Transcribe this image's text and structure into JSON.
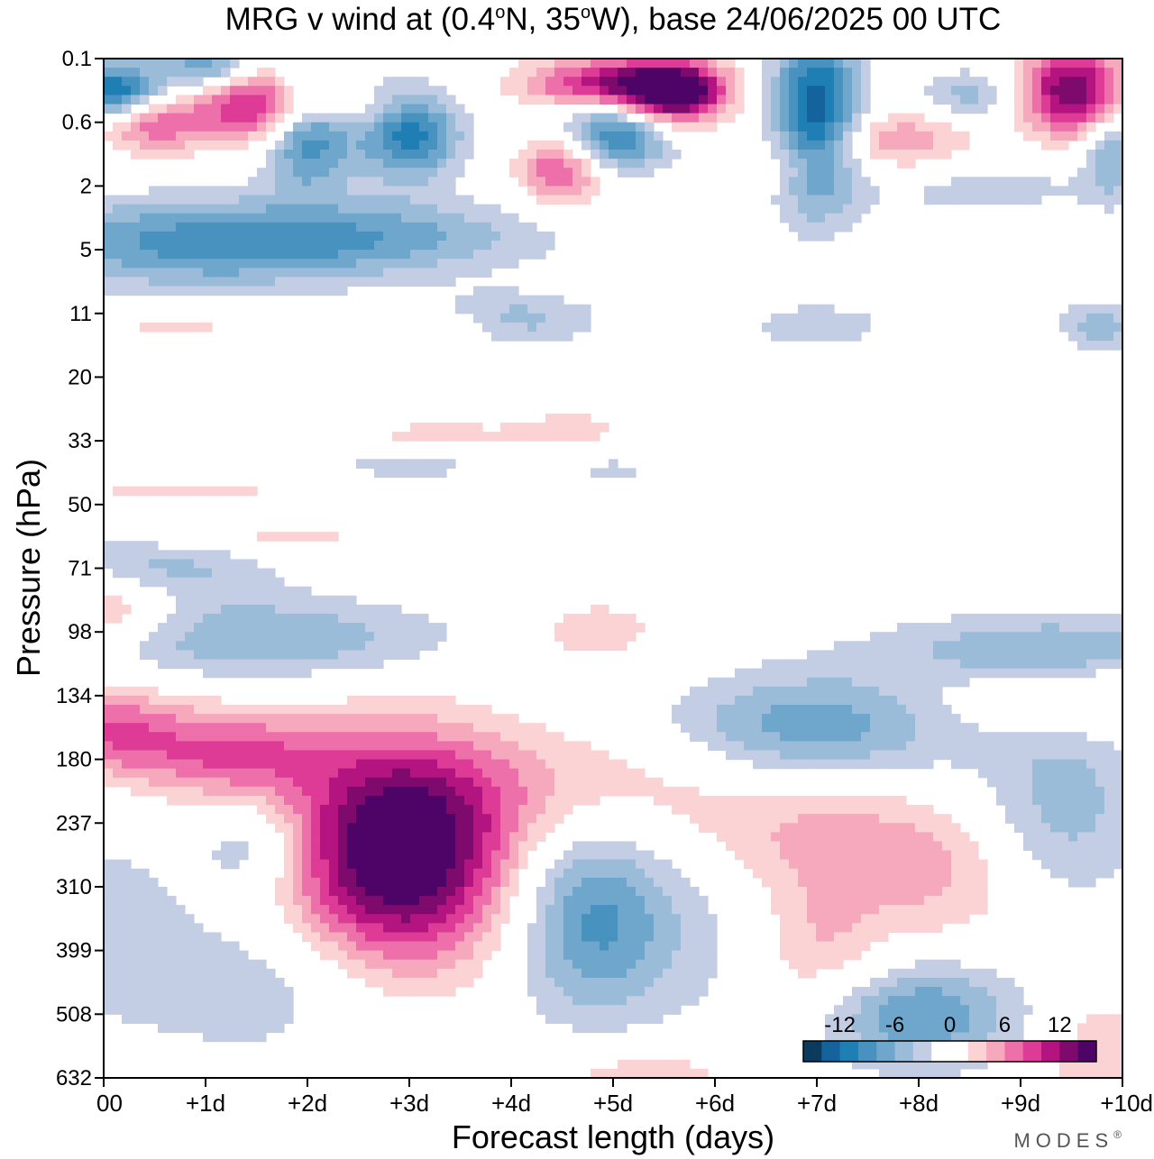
{
  "chart_data": {
    "type": "heatmap",
    "title": "MRG v wind at (0.4°N, 35°W),  base 24/06/2025  00 UTC",
    "title_parts": {
      "pre": "MRG v wind at (0.4",
      "deg1": "o",
      "mid": "N, 35",
      "deg2": "o",
      "post": "W),  base 24/06/2025  00 UTC"
    },
    "xlabel": "Forecast length (days)",
    "ylabel": "Pressure (hPa)",
    "x_ticks": [
      "00",
      "+1d",
      "+2d",
      "+3d",
      "+4d",
      "+5d",
      "+6d",
      "+7d",
      "+8d",
      "+9d",
      "+10d"
    ],
    "y_ticks": [
      "0.1",
      "0.6",
      "2",
      "5",
      "11",
      "20",
      "33",
      "50",
      "71",
      "98",
      "134",
      "180",
      "237",
      "310",
      "399",
      "508",
      "632"
    ],
    "xlim": [
      0,
      10
    ],
    "y_axis_inverted": true,
    "colorbar": {
      "labels": [
        "-12",
        "-6",
        "0",
        "6",
        "12"
      ],
      "label_values": [
        -12,
        -6,
        0,
        6,
        12
      ],
      "bins": [
        {
          "min": -16,
          "max": -14,
          "color": "#0c3a5c"
        },
        {
          "min": -14,
          "max": -12,
          "color": "#14639c"
        },
        {
          "min": -12,
          "max": -10,
          "color": "#1f7fb5"
        },
        {
          "min": -10,
          "max": -8,
          "color": "#4892c0"
        },
        {
          "min": -8,
          "max": -6,
          "color": "#6fa6cc"
        },
        {
          "min": -6,
          "max": -4,
          "color": "#9bbcd9"
        },
        {
          "min": -4,
          "max": -2,
          "color": "#c3cde3"
        },
        {
          "min": -2,
          "max": 0,
          "color": "#ffffff"
        },
        {
          "min": 0,
          "max": 2,
          "color": "#ffffff"
        },
        {
          "min": 2,
          "max": 4,
          "color": "#fbd3d4"
        },
        {
          "min": 4,
          "max": 6,
          "color": "#f6a8bd"
        },
        {
          "min": 6,
          "max": 8,
          "color": "#ee70aa"
        },
        {
          "min": 8,
          "max": 10,
          "color": "#dd3b96"
        },
        {
          "min": 10,
          "max": 12,
          "color": "#b41480"
        },
        {
          "min": 12,
          "max": 14,
          "color": "#7e0a6d"
        },
        {
          "min": 14,
          "max": 16,
          "color": "#4e0466"
        }
      ]
    },
    "features": [
      {
        "x": 2.9,
        "y_level": 12.5,
        "sx": 0.75,
        "sy": 1.2,
        "amp": 18
      },
      {
        "x": 1.2,
        "y_level": 10.9,
        "sx": 0.7,
        "sy": 0.5,
        "amp": 8
      },
      {
        "x": 0.0,
        "y_level": 10.5,
        "sx": 0.5,
        "sy": 0.5,
        "amp": 7
      },
      {
        "x": 4.8,
        "y_level": 11.4,
        "sx": 1.4,
        "sy": 0.7,
        "amp": 4
      },
      {
        "x": 6.9,
        "y_level": 12.3,
        "sx": 0.9,
        "sy": 0.75,
        "amp": 5.5
      },
      {
        "x": 7.0,
        "y_level": 14.0,
        "sx": 0.5,
        "sy": 0.8,
        "amp": 5.5
      },
      {
        "x": 8.3,
        "y_level": 12.9,
        "sx": 0.6,
        "sy": 0.8,
        "amp": 3.5
      },
      {
        "x": 9.6,
        "y_level": 10.0,
        "sx": 1.0,
        "sy": 0.4,
        "amp": 4
      },
      {
        "x": 0.0,
        "y_level": 8.6,
        "sx": 0.5,
        "sy": 0.4,
        "amp": 6
      },
      {
        "x": 4.8,
        "y_level": 9.0,
        "sx": 0.6,
        "sy": 0.45,
        "amp": 3
      },
      {
        "x": 9.8,
        "y_level": 15.8,
        "sx": 0.4,
        "sy": 0.8,
        "amp": 4
      },
      {
        "x": 5.3,
        "y_level": 15.9,
        "sx": 0.8,
        "sy": 0.35,
        "amp": 3.5
      },
      {
        "x": 4.8,
        "y_level": 13.5,
        "sx": 0.55,
        "sy": 1.1,
        "amp": -8.5
      },
      {
        "x": 1.5,
        "y_level": 14.5,
        "sx": 1.0,
        "sy": 0.9,
        "amp": -3.5
      },
      {
        "x": 1.6,
        "y_level": 9.1,
        "sx": 1.3,
        "sy": 0.45,
        "amp": -6
      },
      {
        "x": 0.5,
        "y_level": 8.0,
        "sx": 0.8,
        "sy": 0.4,
        "amp": -5
      },
      {
        "x": 7.0,
        "y_level": 10.5,
        "sx": 1.0,
        "sy": 0.6,
        "amp": -7.5
      },
      {
        "x": 8.0,
        "y_level": 15.0,
        "sx": 0.7,
        "sy": 0.6,
        "amp": -8
      },
      {
        "x": 9.4,
        "y_level": 11.7,
        "sx": 0.6,
        "sy": 1.1,
        "amp": -5
      },
      {
        "x": 9.3,
        "y_level": 9.3,
        "sx": 1.2,
        "sy": 0.4,
        "amp": -6
      },
      {
        "x": 6.3,
        "y_level": 13.2,
        "sx": 0.8,
        "sy": 1.5,
        "amp": -3
      },
      {
        "x": 1.5,
        "y_level": 12.4,
        "sx": 0.4,
        "sy": 0.5,
        "amp": -4.5
      },
      {
        "x": 0.0,
        "y_level": 13.5,
        "sx": 0.5,
        "sy": 1.0,
        "amp": -3
      },
      {
        "x": 0.9,
        "y_level": 2.9,
        "sx": 1.3,
        "sy": 0.5,
        "amp": -8.5
      },
      {
        "x": 2.9,
        "y_level": 2.8,
        "sx": 1.1,
        "sy": 0.4,
        "amp": -5
      },
      {
        "x": 4.0,
        "y_level": 4.1,
        "sx": 0.6,
        "sy": 0.3,
        "amp": -5
      },
      {
        "x": 7.0,
        "y_level": 4.2,
        "sx": 0.6,
        "sy": 0.3,
        "amp": -3
      },
      {
        "x": 8.6,
        "y_level": 2.0,
        "sx": 0.9,
        "sy": 0.4,
        "amp": -3
      },
      {
        "x": 5.0,
        "y_level": 0.4,
        "sx": 0.6,
        "sy": 0.28,
        "amp": 12
      },
      {
        "x": 5.6,
        "y_level": 0.55,
        "sx": 0.35,
        "sy": 0.35,
        "amp": 15
      },
      {
        "x": 9.5,
        "y_level": 0.5,
        "sx": 0.35,
        "sy": 0.5,
        "amp": 14
      },
      {
        "x": 1.5,
        "y_level": 0.75,
        "sx": 0.4,
        "sy": 0.4,
        "amp": 11
      },
      {
        "x": 0.5,
        "y_level": 1.0,
        "sx": 0.35,
        "sy": 0.35,
        "amp": 8
      },
      {
        "x": 4.5,
        "y_level": 1.7,
        "sx": 0.3,
        "sy": 0.4,
        "amp": 9.5
      },
      {
        "x": 7.8,
        "y_level": 1.3,
        "sx": 0.6,
        "sy": 0.35,
        "amp": 6
      },
      {
        "x": 2.4,
        "y_level": 0.8,
        "sx": 0.4,
        "sy": 0.2,
        "amp": 3
      },
      {
        "x": 3.4,
        "y_level": 4.2,
        "sx": 0.4,
        "sy": 0.2,
        "amp": 3
      },
      {
        "x": 6.8,
        "y_level": 1.7,
        "sx": 0.3,
        "sy": 0.3,
        "amp": 3
      },
      {
        "x": 0.7,
        "y_level": 4.2,
        "sx": 0.8,
        "sy": 0.2,
        "amp": 2.5
      },
      {
        "x": 0.1,
        "y_level": 0.5,
        "sx": 0.35,
        "sy": 0.3,
        "amp": -13
      },
      {
        "x": 2.0,
        "y_level": 1.2,
        "sx": 0.3,
        "sy": 0.6,
        "amp": -10
      },
      {
        "x": 3.0,
        "y_level": 1.2,
        "sx": 0.35,
        "sy": 0.5,
        "amp": -11
      },
      {
        "x": 5.0,
        "y_level": 1.2,
        "sx": 0.4,
        "sy": 0.4,
        "amp": -11
      },
      {
        "x": 7.0,
        "y_level": 0.9,
        "sx": 0.3,
        "sy": 1.0,
        "amp": -14
      },
      {
        "x": 1.0,
        "y_level": 0.1,
        "sx": 0.3,
        "sy": 0.25,
        "amp": -8
      },
      {
        "x": 9.9,
        "y_level": 1.5,
        "sx": 0.2,
        "sy": 0.5,
        "amp": -6
      },
      {
        "x": 9.8,
        "y_level": 4.2,
        "sx": 0.3,
        "sy": 0.3,
        "amp": -5
      },
      {
        "x": 8.5,
        "y_level": 0.6,
        "sx": 0.35,
        "sy": 0.3,
        "amp": -5
      },
      {
        "x": 3.3,
        "y_level": 5.9,
        "sx": 0.6,
        "sy": 0.15,
        "amp": 3
      },
      {
        "x": 4.6,
        "y_level": 5.8,
        "sx": 0.4,
        "sy": 0.2,
        "amp": 3
      },
      {
        "x": 3.0,
        "y_level": 6.4,
        "sx": 0.8,
        "sy": 0.2,
        "amp": -2.5
      },
      {
        "x": 0.8,
        "y_level": 6.8,
        "sx": 0.8,
        "sy": 0.15,
        "amp": 3
      },
      {
        "x": 1.6,
        "y_level": 7.5,
        "sx": 0.9,
        "sy": 0.2,
        "amp": 3
      },
      {
        "x": 5.0,
        "y_level": 6.5,
        "sx": 0.3,
        "sy": 0.2,
        "amp": -2.5
      }
    ]
  },
  "brand": {
    "text": "MODES",
    "mark": "®"
  }
}
